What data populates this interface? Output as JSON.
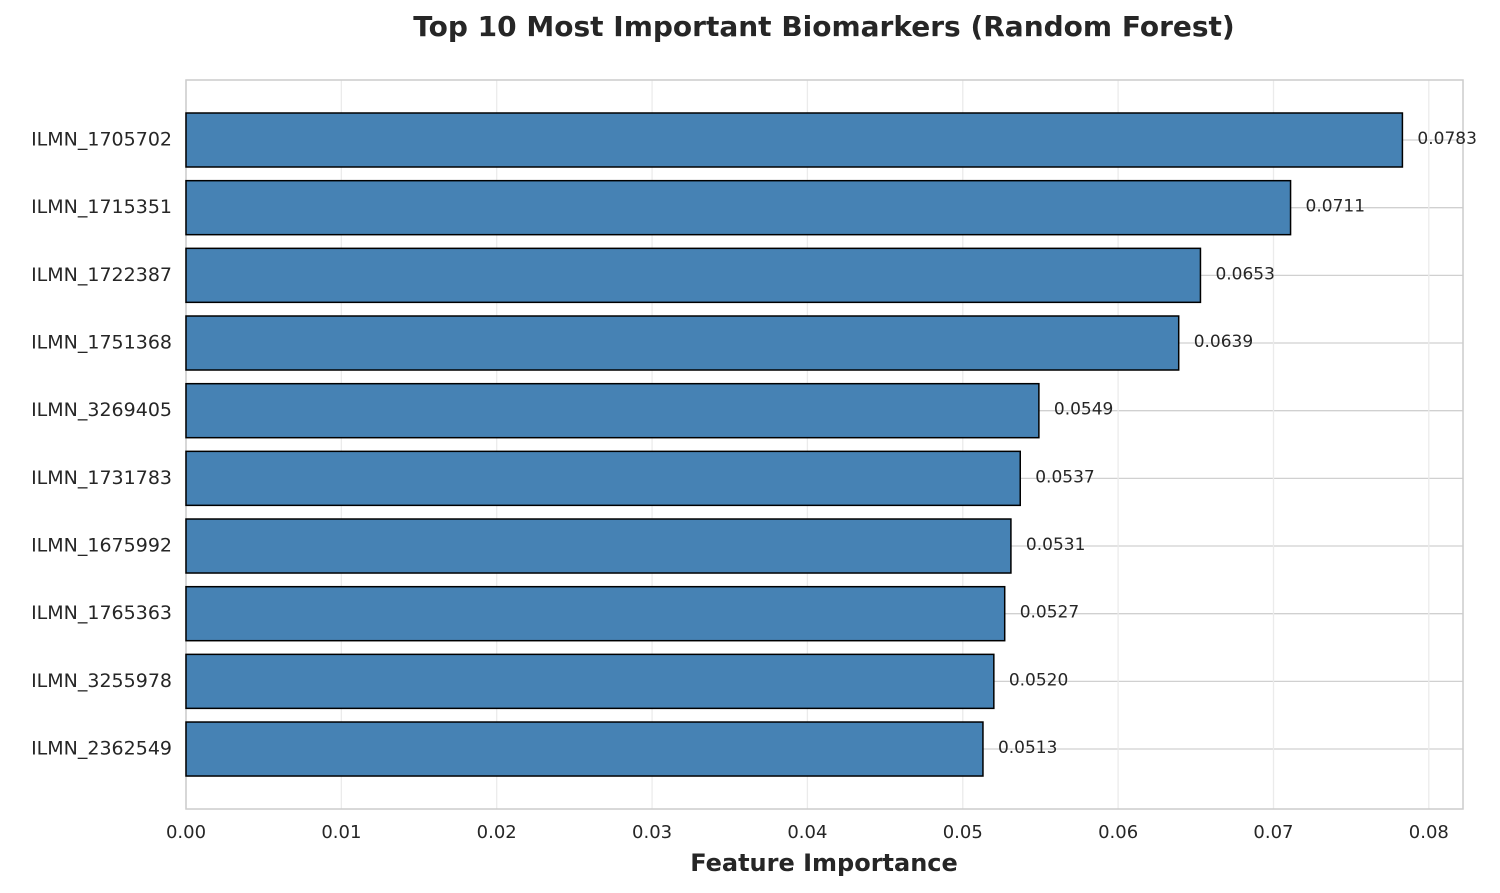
{
  "chart_data": {
    "type": "barh",
    "title": "Top 10 Most Important Biomarkers (Random Forest)",
    "xlabel": "Feature Importance",
    "categories": [
      "ILMN_1705702",
      "ILMN_1715351",
      "ILMN_1722387",
      "ILMN_1751368",
      "ILMN_3269405",
      "ILMN_1731783",
      "ILMN_1675992",
      "ILMN_1765363",
      "ILMN_3255978",
      "ILMN_2362549"
    ],
    "values": [
      0.0783,
      0.0711,
      0.0653,
      0.0639,
      0.0549,
      0.0537,
      0.0531,
      0.0527,
      0.052,
      0.0513
    ],
    "value_labels": [
      "0.0783",
      "0.0711",
      "0.0653",
      "0.0639",
      "0.0549",
      "0.0537",
      "0.0531",
      "0.0527",
      "0.0520",
      "0.0513"
    ],
    "color": "#4682b4",
    "xlim": [
      0,
      0.0822
    ],
    "xticks": [
      {
        "value": 0,
        "label": "0.00"
      },
      {
        "value": 0.01,
        "label": "0.01"
      },
      {
        "value": 0.02,
        "label": "0.02"
      },
      {
        "value": 0.03,
        "label": "0.03"
      },
      {
        "value": 0.04,
        "label": "0.04"
      },
      {
        "value": 0.05,
        "label": "0.05"
      },
      {
        "value": 0.06,
        "label": "0.06"
      },
      {
        "value": 0.07,
        "label": "0.07"
      },
      {
        "value": 0.08,
        "label": "0.08"
      }
    ],
    "grid": true
  }
}
